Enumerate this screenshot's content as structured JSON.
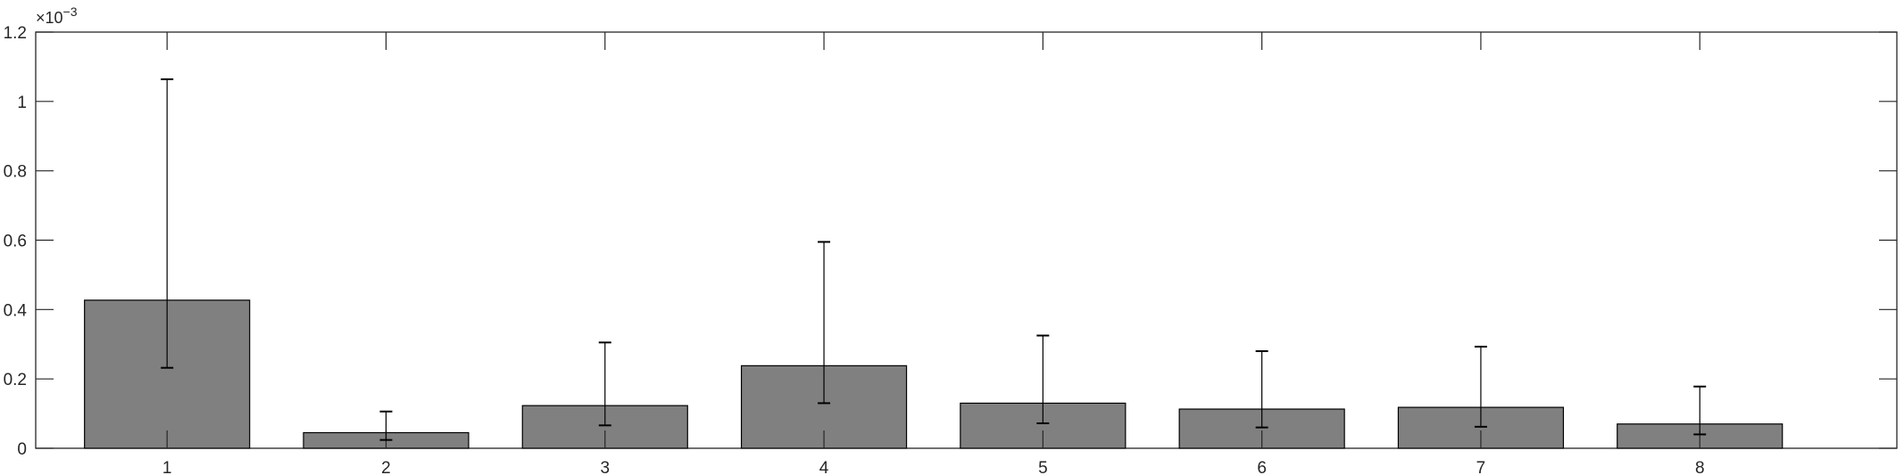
{
  "chart_data": {
    "type": "bar",
    "title": "",
    "xlabel": "",
    "ylabel": "",
    "y_exponent_label": {
      "base": "×10",
      "power": "−3"
    },
    "categories": [
      "1",
      "2",
      "3",
      "4",
      "5",
      "6",
      "7",
      "8"
    ],
    "values": [
      0.000427,
      4.5e-05,
      0.000123,
      0.000238,
      0.00013,
      0.000113,
      0.000118,
      7e-05
    ],
    "error_bars": {
      "lower": [
        0.000232,
        2.4e-05,
        6.6e-05,
        0.00013,
        7.2e-05,
        6e-05,
        6.2e-05,
        4e-05
      ],
      "upper": [
        0.001064,
        0.000106,
        0.000305,
        0.000595,
        0.000325,
        0.00028,
        0.000293,
        0.000178
      ]
    },
    "ylim": [
      0,
      0.0012
    ],
    "xlim": [
      0.4,
      8.9
    ],
    "yticks": [
      0,
      0.0002,
      0.0004,
      0.0006,
      0.0008,
      0.001,
      0.0012
    ],
    "ytick_labels": [
      "0",
      "0.2",
      "0.4",
      "0.6",
      "0.8",
      "1",
      "1.2"
    ],
    "grid": false,
    "box": true,
    "colors": {
      "bar_fill": "#808080",
      "bar_edge": "#000000",
      "axis": "#262626",
      "errorbar": "#000000"
    }
  }
}
